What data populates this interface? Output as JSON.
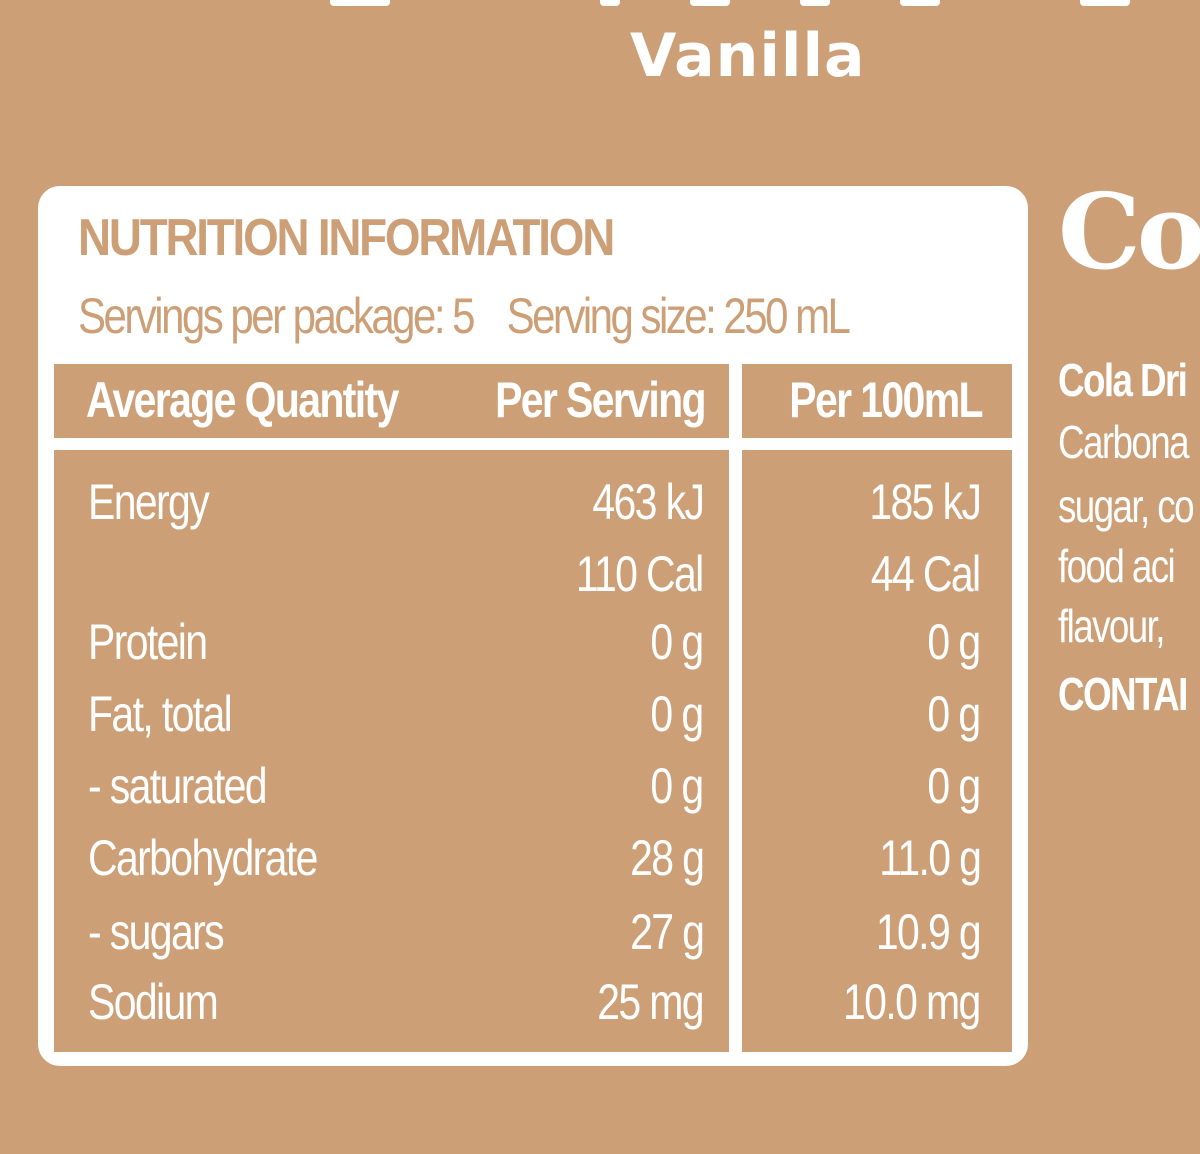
{
  "flavour": "Vanilla",
  "nutrition": {
    "title": "NUTRITION INFORMATION",
    "servings_per_package": "Servings per package: 5",
    "serving_size": "Serving size: 250 mL",
    "headers": [
      "Average Quantity",
      "Per Serving",
      "Per 100mL"
    ],
    "rows": [
      {
        "label": "Energy",
        "per_serving": "463 kJ",
        "per_100ml": "185 kJ"
      },
      {
        "label": "",
        "per_serving": "110 Cal",
        "per_100ml": "44 Cal"
      },
      {
        "label": "Protein",
        "per_serving": "0 g",
        "per_100ml": "0 g"
      },
      {
        "label": "Fat, total",
        "per_serving": "0 g",
        "per_100ml": "0 g"
      },
      {
        "label": "- saturated",
        "per_serving": "0 g",
        "per_100ml": "0 g"
      },
      {
        "label": "Carbohydrate",
        "per_serving": "28 g",
        "per_100ml": "11.0 g"
      },
      {
        "label": "- sugars",
        "per_serving": "27 g",
        "per_100ml": "10.9 g"
      },
      {
        "label": "Sodium",
        "per_serving": "25 mg",
        "per_100ml": "10.0 mg"
      }
    ]
  },
  "side_panel": {
    "brand": "Co",
    "product_line": "Cola Dri",
    "ingredients_lines": [
      "Carbona",
      "sugar, co",
      "food aci",
      "flavour,"
    ],
    "contains": "CONTAI"
  },
  "colors": {
    "background": "#cc9f77",
    "panel": "#ffffff"
  }
}
